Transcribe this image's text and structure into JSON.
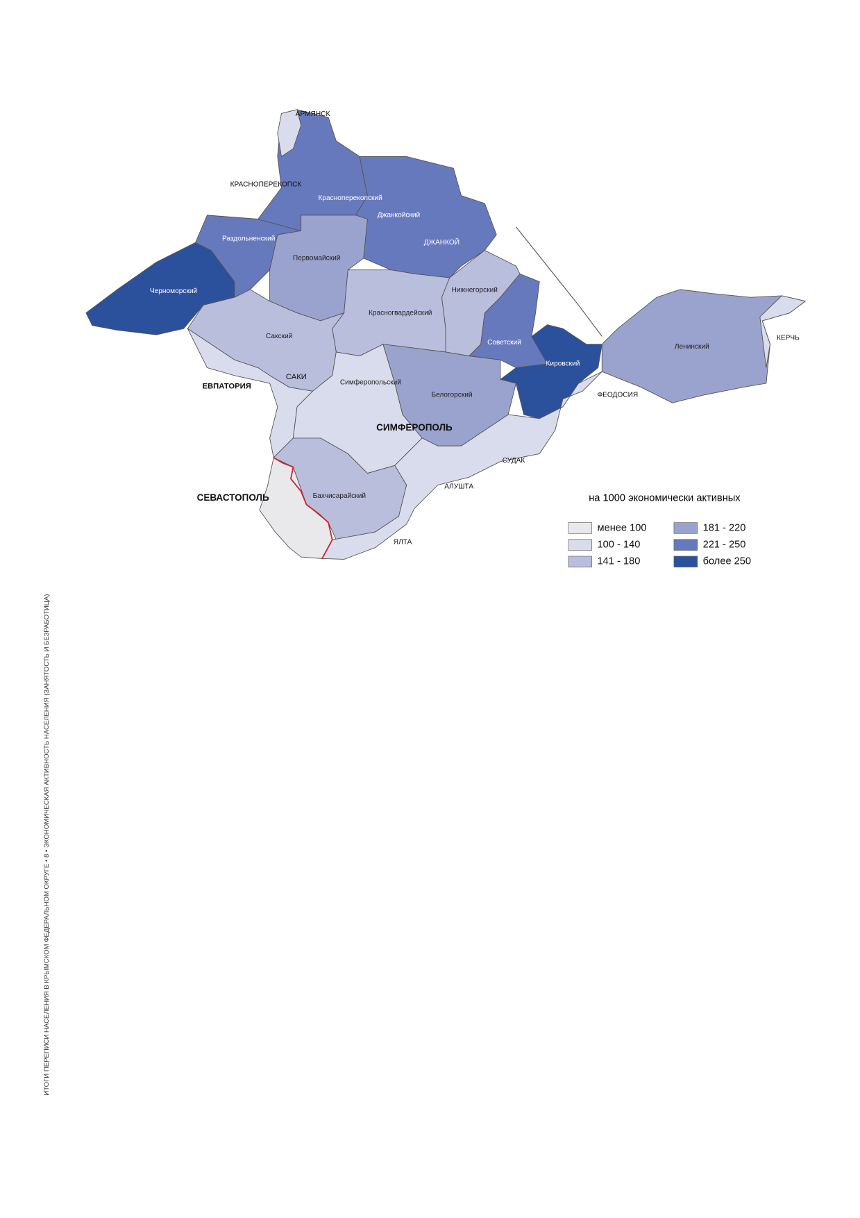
{
  "side_caption": "ИТОГИ ПЕРЕПИСИ НАСЕЛЕНИЯ В КРЫМСКОМ ФЕДЕРАЛЬНОМ ОКРУГЕ • 8 • ЭКОНОМИЧЕСКАЯ АКТИВНОСТЬ НАСЕЛЕНИЯ (ЗАНЯТОСТЬ И БЕЗРАБОТИЦА)",
  "map": {
    "regions": [
      {
        "label": "Черноморский",
        "class": "более 250"
      },
      {
        "label": "Раздольненский",
        "class": "221 - 250"
      },
      {
        "label": "Красноперекопский",
        "class": "221 - 250"
      },
      {
        "label": "Джанкойский",
        "class": "221 - 250"
      },
      {
        "label": "Первомайский",
        "class": "181 - 220"
      },
      {
        "label": "Нижнегорский",
        "class": "141 - 180"
      },
      {
        "label": "Советский",
        "class": "221 - 250"
      },
      {
        "label": "Кировский",
        "class": "более 250"
      },
      {
        "label": "Ленинский",
        "class": "181 - 220"
      },
      {
        "label": "Красногвардейский",
        "class": "141 - 180"
      },
      {
        "label": "Сакский",
        "class": "141 - 180"
      },
      {
        "class": "100 - 140"
      },
      {
        "label": "Симферопольский",
        "class": "100 - 140"
      },
      {
        "label": "Белогорский",
        "class": "181 - 220"
      },
      {
        "label": "Бахчисарайский",
        "class": "141 - 180"
      },
      {
        "class": "100 - 140"
      },
      {
        "class": "менее 100"
      },
      {
        "class": "100 - 140"
      },
      {
        "class": "100 - 140"
      }
    ],
    "cities": [
      "АРМЯНСК",
      "КРАСНОПЕРЕКОПСК",
      "ДЖАНКОЙ",
      "ЕВПАТОРИЯ",
      "САКИ",
      "СИМФЕРОПОЛЬ",
      "СЕВАСТОПОЛЬ",
      "ФЕОДОСИЯ",
      "СУДАК",
      "АЛУШТА",
      "ЯЛТА",
      "КЕРЧЬ"
    ],
    "legend": {
      "title": "на 1000 экономически активных",
      "items": [
        {
          "label": "менее 100",
          "color": "#e9e9eb"
        },
        {
          "label": "100 - 140",
          "color": "#d9dcec"
        },
        {
          "label": "141 - 180",
          "color": "#b9bedc"
        },
        {
          "label": "181 - 220",
          "color": "#9aa3cd"
        },
        {
          "label": "221 - 250",
          "color": "#6779bd"
        },
        {
          "label": "более 250",
          "color": "#2c519c"
        }
      ]
    }
  }
}
